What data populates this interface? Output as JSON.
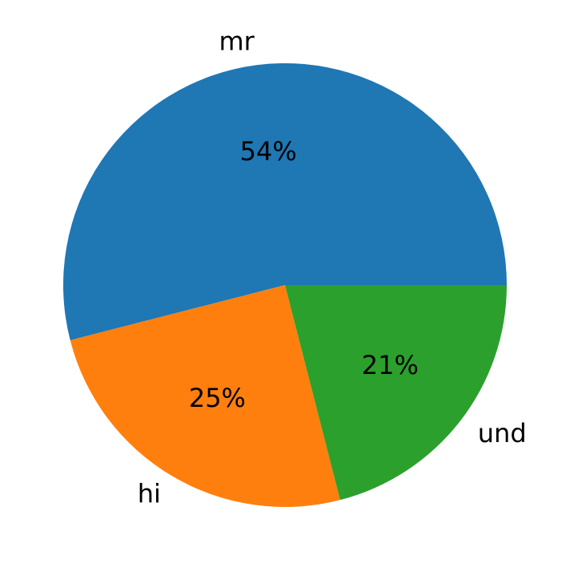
{
  "chart_data": {
    "type": "pie",
    "categories": [
      "mr",
      "hi",
      "und"
    ],
    "values": [
      54,
      25,
      21
    ],
    "value_labels": [
      "54%",
      "25%",
      "21%"
    ],
    "colors": [
      "#1f77b4",
      "#ff7f0e",
      "#2ca02c"
    ]
  }
}
